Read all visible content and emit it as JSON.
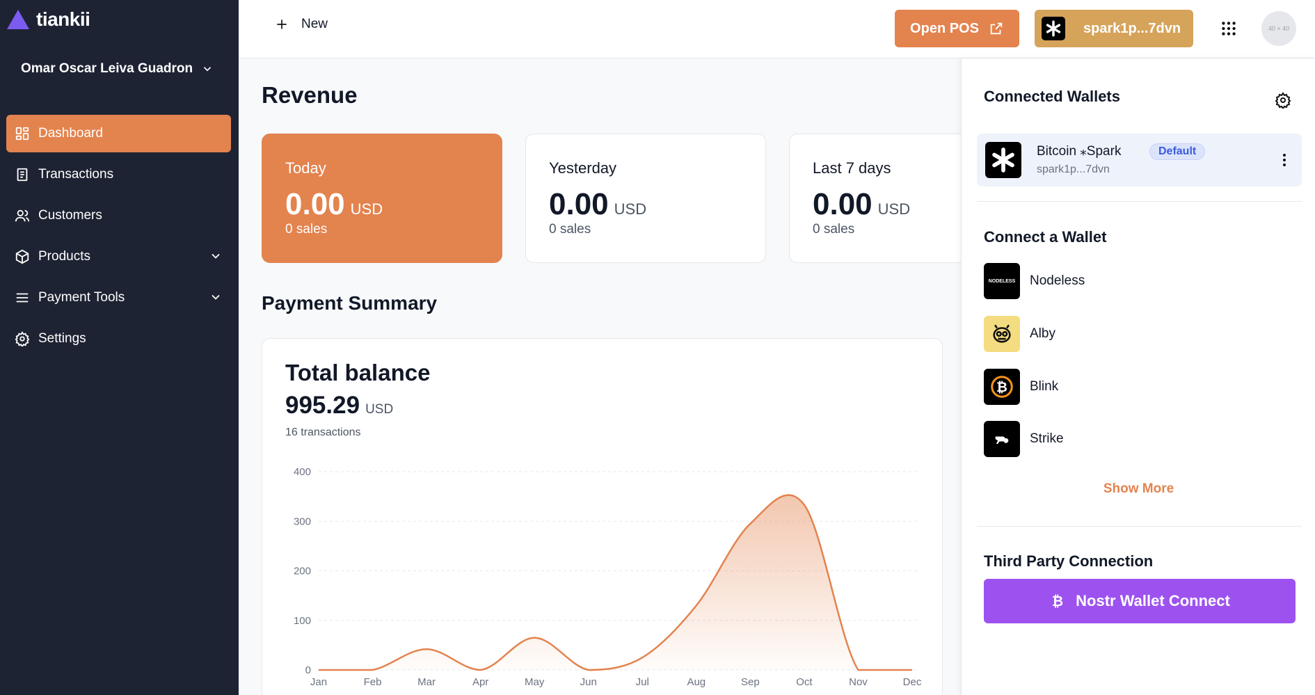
{
  "brand": {
    "name": "tiankii"
  },
  "org": {
    "name": "Omar Oscar Leiva Guadron"
  },
  "nav": [
    {
      "label": "Dashboard"
    },
    {
      "label": "Transactions"
    },
    {
      "label": "Customers"
    },
    {
      "label": "Products"
    },
    {
      "label": "Payment Tools"
    },
    {
      "label": "Settings"
    }
  ],
  "topbar": {
    "new_label": "New",
    "pos_label": "Open POS",
    "wallet_label": "spark1p...7dvn",
    "avatar_label": "40 × 40"
  },
  "revenue": {
    "title": "Revenue",
    "cards": [
      {
        "label": "Today",
        "value": "0.00",
        "currency": "USD",
        "sales": "0 sales"
      },
      {
        "label": "Yesterday",
        "value": "0.00",
        "currency": "USD",
        "sales": "0 sales"
      },
      {
        "label": "Last 7 days",
        "value": "0.00",
        "currency": "USD",
        "sales": "0 sales"
      }
    ]
  },
  "payment_summary": {
    "title": "Payment Summary",
    "total_label": "Total balance",
    "total_value": "995.29",
    "currency": "USD",
    "tx_count": "16 transactions"
  },
  "chart_data": {
    "type": "area",
    "categories": [
      "Jan",
      "Feb",
      "Mar",
      "Apr",
      "May",
      "Jun",
      "Jul",
      "Aug",
      "Sep",
      "Oct",
      "Nov",
      "Dec"
    ],
    "values": [
      0,
      0,
      42,
      0,
      65,
      0,
      25,
      130,
      295,
      333,
      0,
      0
    ],
    "yticks": [
      0,
      100,
      200,
      300,
      400
    ],
    "ylim": [
      0,
      400
    ],
    "grid": true,
    "color": "#e3834e"
  },
  "panel": {
    "connected_title": "Connected Wallets",
    "connected": {
      "name": "Bitcoin ⁎Spark",
      "badge": "Default",
      "address": "spark1p...7dvn"
    },
    "connect_title": "Connect a Wallet",
    "wallets": [
      {
        "name": "Nodeless",
        "logo_text": "NODELESS"
      },
      {
        "name": "Alby"
      },
      {
        "name": "Blink"
      },
      {
        "name": "Strike"
      }
    ],
    "show_more": "Show More",
    "third_party_title": "Third Party Connection",
    "nwc_label": "Nostr Wallet Connect"
  }
}
